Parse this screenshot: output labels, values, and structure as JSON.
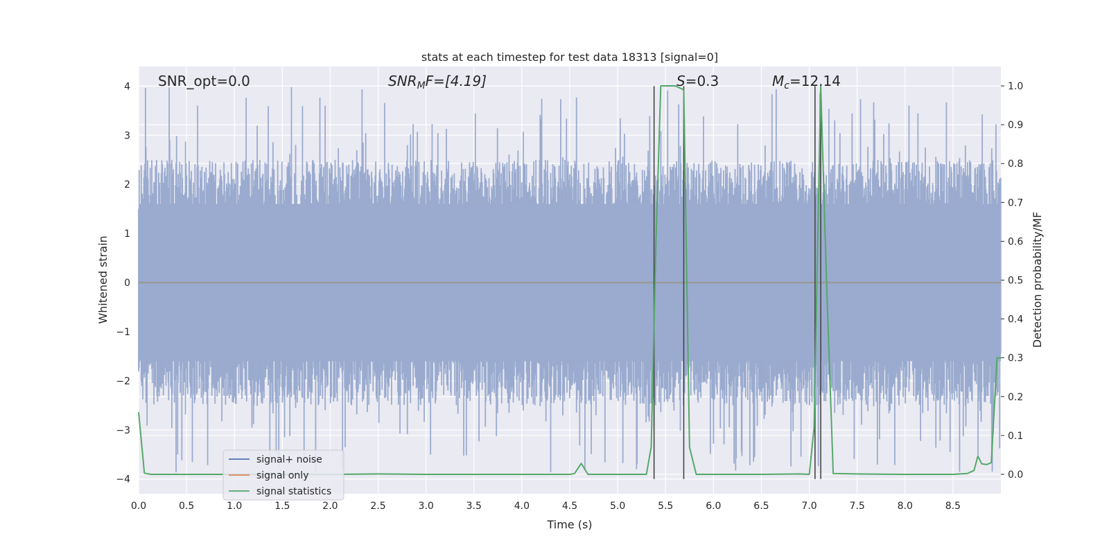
{
  "chart_data": {
    "type": "line",
    "title": "stats at each timestep for test data 18313 [signal=0]",
    "xlabel": "Time (s)",
    "ylabel": "Whitened strain",
    "y2label": "Detection probability/MF",
    "xlim": [
      0.0,
      9.0
    ],
    "ylim": [
      -4.3,
      4.4
    ],
    "y2lim": [
      -0.05,
      1.05
    ],
    "x_ticks": [
      0.0,
      0.5,
      1.0,
      1.5,
      2.0,
      2.5,
      3.0,
      3.5,
      4.0,
      4.5,
      5.0,
      5.5,
      6.0,
      6.5,
      7.0,
      7.5,
      8.0,
      8.5
    ],
    "x_tick_labels": [
      "0.0",
      "0.5",
      "1.0",
      "1.5",
      "2.0",
      "2.5",
      "3.0",
      "3.5",
      "4.0",
      "4.5",
      "5.0",
      "5.5",
      "6.0",
      "6.5",
      "7.0",
      "7.5",
      "8.0",
      "8.5"
    ],
    "y_ticks": [
      4,
      3,
      2,
      1,
      0,
      -1,
      -2,
      -3,
      -4
    ],
    "y_tick_labels": [
      "4",
      "3",
      "2",
      "1",
      "0",
      "−1",
      "−2",
      "−3",
      "−4"
    ],
    "y2_ticks": [
      1.0,
      0.9,
      0.8,
      0.7,
      0.6,
      0.5,
      0.4,
      0.3,
      0.2,
      0.1,
      0.0
    ],
    "y2_tick_labels": [
      "1.0",
      "0.9",
      "0.8",
      "0.7",
      "0.6",
      "0.5",
      "0.4",
      "0.3",
      "0.2",
      "0.1",
      "0.0"
    ],
    "grid": true,
    "legend_position": "lower-left",
    "annotations": {
      "snr_opt": "SNR_opt=0.0",
      "snr_mf_main": "SNR",
      "snr_mf_sub": "M",
      "snr_mf_rest": "F=[4.19]",
      "s_main": "S",
      "s_rest": "=0.3",
      "mc_main": "M",
      "mc_sub": "c",
      "mc_rest": "=12.14"
    },
    "series": [
      {
        "name": "signal+ noise",
        "color": "#4c72b0",
        "axis": "left",
        "noise_spread": 1.6,
        "peak_range": [
          -3.9,
          4.0
        ]
      },
      {
        "name": "signal only",
        "color": "#dd8452",
        "axis": "left",
        "x": [
          0.0,
          9.0
        ],
        "y": [
          0.0,
          0.0
        ]
      },
      {
        "name": "signal statistics",
        "color": "#55a868",
        "axis": "right",
        "x": [
          0.0,
          0.06,
          0.13,
          0.5,
          1.0,
          1.5,
          2.0,
          2.5,
          3.0,
          3.5,
          4.0,
          4.5,
          4.55,
          4.62,
          4.69,
          5.0,
          5.3,
          5.35,
          5.4,
          5.45,
          5.5,
          5.6,
          5.69,
          5.75,
          5.82,
          6.0,
          6.5,
          6.9,
          7.0,
          7.05,
          7.12,
          7.18,
          7.25,
          7.5,
          8.0,
          8.5,
          8.65,
          8.72,
          8.76,
          8.8,
          8.85,
          8.9,
          8.96,
          9.0
        ],
        "y": [
          0.16,
          0.003,
          0.0,
          0.0,
          0.0,
          0.0,
          0.0,
          0.001,
          0.0,
          0.0,
          0.0,
          0.0,
          0.002,
          0.028,
          0.0,
          0.0,
          0.0,
          0.07,
          0.6,
          1.0,
          1.0,
          1.0,
          0.99,
          0.07,
          0.0,
          0.0,
          0.0,
          0.001,
          0.0,
          0.12,
          1.0,
          0.5,
          0.002,
          0.001,
          0.0,
          0.0,
          0.002,
          0.01,
          0.047,
          0.027,
          0.025,
          0.03,
          0.3,
          0.3
        ]
      }
    ],
    "vertical_markers": {
      "color": "#444444",
      "x": [
        5.38,
        5.69,
        7.06,
        7.12
      ],
      "y_top": 4.0,
      "y_bottom": -4.0
    },
    "colors": {
      "axes_background": "#eaeaf2",
      "grid": "#ffffff",
      "noise_fill": "#9aabcf"
    }
  }
}
